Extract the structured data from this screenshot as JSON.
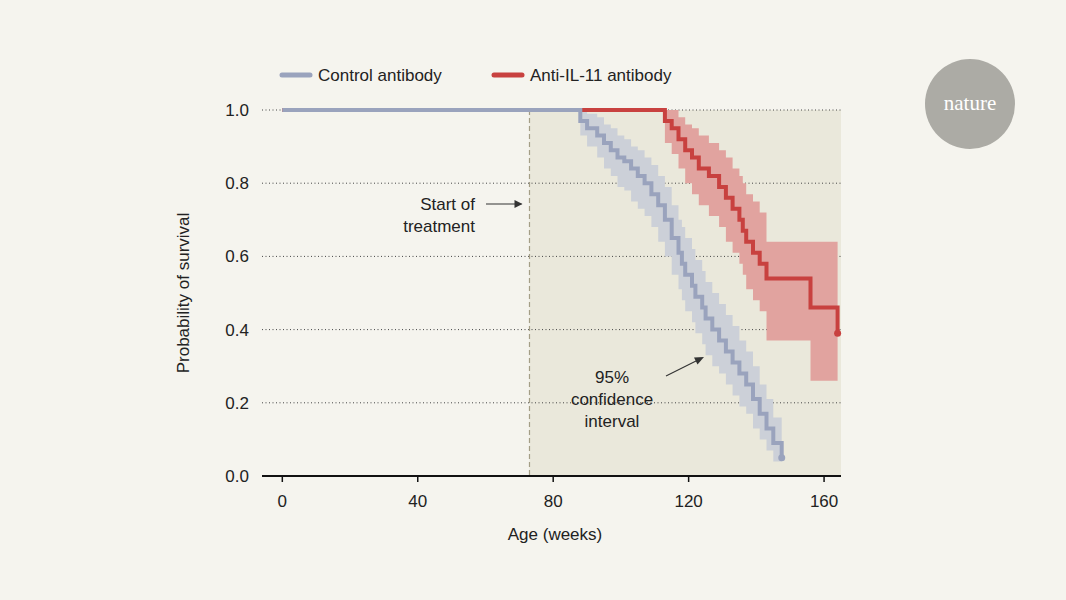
{
  "chart_data": {
    "type": "step",
    "logo": "nature",
    "x_label": "Age (weeks)",
    "y_label": "Probability of survival",
    "xlim": [
      -6,
      165
    ],
    "xticks": [
      0,
      40,
      80,
      120,
      160
    ],
    "ylim": [
      0,
      1
    ],
    "yticks": [
      {
        "value": 0,
        "label": "0.0"
      },
      0.2,
      0.4,
      0.6,
      0.8,
      {
        "value": 1,
        "label": "1.0"
      }
    ],
    "grid": true,
    "legend": "top",
    "annotations": [
      {
        "text": [
          "Start of",
          "treatment"
        ],
        "x": 73
      },
      {
        "text": [
          "95%",
          "confidence",
          "interval"
        ]
      }
    ],
    "series": [
      {
        "name": "Control antibody",
        "color": "#9aa3bd",
        "marker": "end",
        "x": [
          0,
          88,
          90,
          93,
          95,
          97,
          99,
          101,
          103,
          105,
          107,
          109,
          111,
          113,
          115,
          117,
          118,
          119,
          121,
          122,
          124,
          125,
          127,
          129,
          131,
          133,
          135,
          137,
          139,
          141,
          143,
          145,
          147.5
        ],
        "values": [
          1,
          0.97,
          0.95,
          0.93,
          0.91,
          0.89,
          0.87,
          0.86,
          0.84,
          0.82,
          0.8,
          0.77,
          0.74,
          0.7,
          0.65,
          0.61,
          0.58,
          0.55,
          0.52,
          0.49,
          0.46,
          0.43,
          0.4,
          0.37,
          0.34,
          0.31,
          0.28,
          0.25,
          0.21,
          0.17,
          0.13,
          0.09,
          0.05
        ],
        "lower": [
          1,
          0.93,
          0.9,
          0.87,
          0.84,
          0.82,
          0.79,
          0.78,
          0.75,
          0.73,
          0.71,
          0.68,
          0.64,
          0.6,
          0.55,
          0.51,
          0.48,
          0.45,
          0.42,
          0.39,
          0.36,
          0.33,
          0.3,
          0.28,
          0.25,
          0.22,
          0.19,
          0.17,
          0.13,
          0.1,
          0.07,
          0.04,
          0.02
        ],
        "upper": [
          1,
          1,
          0.99,
          0.98,
          0.96,
          0.95,
          0.93,
          0.92,
          0.9,
          0.89,
          0.87,
          0.85,
          0.82,
          0.79,
          0.74,
          0.7,
          0.68,
          0.65,
          0.62,
          0.59,
          0.56,
          0.53,
          0.5,
          0.47,
          0.44,
          0.41,
          0.37,
          0.34,
          0.3,
          0.25,
          0.21,
          0.16,
          0.1
        ]
      },
      {
        "name": "Anti-IL-11 antibody",
        "color": "#c8413f",
        "marker": "end",
        "x": [
          0,
          113,
          115,
          117,
          119,
          121,
          123,
          126,
          129,
          131,
          133,
          135,
          136,
          137,
          139,
          141,
          143,
          156,
          164
        ],
        "values": [
          1,
          0.97,
          0.95,
          0.92,
          0.89,
          0.87,
          0.84,
          0.82,
          0.79,
          0.76,
          0.73,
          0.7,
          0.67,
          0.64,
          0.61,
          0.58,
          0.54,
          0.46,
          0.39
        ],
        "lower": [
          1,
          0.91,
          0.88,
          0.84,
          0.8,
          0.77,
          0.74,
          0.71,
          0.68,
          0.64,
          0.61,
          0.58,
          0.55,
          0.51,
          0.48,
          0.45,
          0.37,
          0.26,
          0.18
        ],
        "upper": [
          1,
          1,
          1,
          0.98,
          0.96,
          0.95,
          0.93,
          0.91,
          0.89,
          0.87,
          0.84,
          0.82,
          0.8,
          0.77,
          0.75,
          0.72,
          0.64,
          0.64,
          0.59
        ]
      }
    ]
  }
}
